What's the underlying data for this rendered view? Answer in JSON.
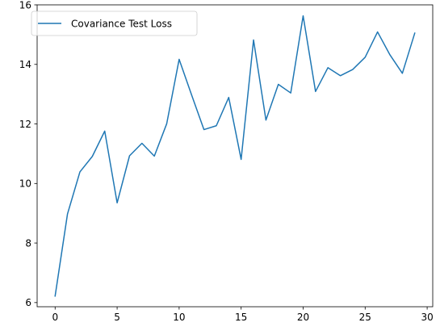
{
  "chart_data": {
    "type": "line",
    "title": "",
    "xlabel": "",
    "ylabel": "",
    "xlim": [
      -1.45,
      30.45
    ],
    "ylim": [
      5.86,
      16.0
    ],
    "xticks": [
      0,
      5,
      10,
      15,
      20,
      25,
      30
    ],
    "xtick_labels": [
      "0",
      "5",
      "10",
      "15",
      "20",
      "25",
      "30"
    ],
    "yticks": [
      6,
      8,
      10,
      12,
      14,
      16
    ],
    "ytick_labels": [
      "6",
      "8",
      "10",
      "12",
      "14",
      "16"
    ],
    "grid": false,
    "legend_position": "upper-left",
    "series": [
      {
        "name": "Covariance Test Loss",
        "color": "#1f77b4",
        "x": [
          0,
          1,
          2,
          3,
          4,
          5,
          6,
          7,
          8,
          9,
          10,
          11,
          12,
          13,
          14,
          15,
          16,
          17,
          18,
          19,
          20,
          21,
          22,
          23,
          24,
          25,
          26,
          27,
          28,
          29
        ],
        "y": [
          6.22,
          8.98,
          10.39,
          10.91,
          11.76,
          9.35,
          10.93,
          11.35,
          10.92,
          12.01,
          14.17,
          12.98,
          11.81,
          11.94,
          12.89,
          10.81,
          14.82,
          12.13,
          13.33,
          13.04,
          15.63,
          13.09,
          13.89,
          13.62,
          13.83,
          14.24,
          15.09,
          14.32,
          13.7,
          15.05
        ]
      }
    ]
  }
}
